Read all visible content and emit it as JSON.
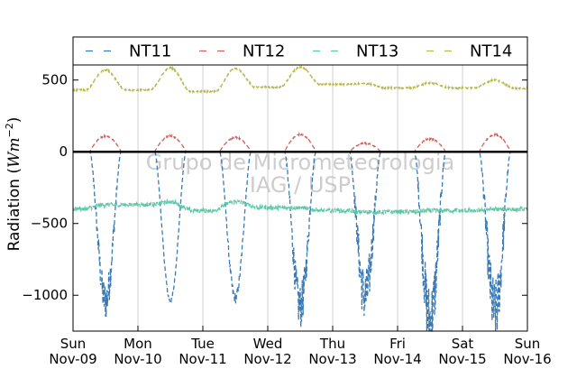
{
  "chart_data": {
    "type": "line",
    "title": "",
    "xlabel": "",
    "ylabel_prefix": "Radiation (",
    "ylabel_unit_main": "Wm",
    "ylabel_unit_exp": "−2",
    "ylabel_suffix": ")",
    "xlim": [
      0,
      7
    ],
    "ylim": [
      -1250,
      800
    ],
    "y_ticks": [
      500,
      0,
      -500,
      -1000
    ],
    "y_tick_labels": [
      "500",
      "0",
      "−500",
      "−1000"
    ],
    "x_ticks": [
      0,
      1,
      2,
      3,
      4,
      5,
      6,
      7
    ],
    "x_tick_labels": [
      [
        "Sun",
        "Nov-09"
      ],
      [
        "Mon",
        "Nov-10"
      ],
      [
        "Tue",
        "Nov-11"
      ],
      [
        "Wed",
        "Nov-12"
      ],
      [
        "Thu",
        "Nov-13"
      ],
      [
        "Fri",
        "Nov-14"
      ],
      [
        "Sat",
        "Nov-15"
      ],
      [
        "Sun",
        "Nov-16"
      ]
    ],
    "vertical_grid": true,
    "zero_line": true,
    "legend_position": "top",
    "watermark": [
      "Grupo de Micrometeorologia",
      "IAG / USP"
    ],
    "series": [
      {
        "name": "NT11",
        "color": "#3b7bb5",
        "night_value": 0,
        "day_minima": [
          -1040,
          -1040,
          -1020,
          -1080,
          -1010,
          -1180,
          -1120
        ],
        "day_noise": [
          140,
          20,
          40,
          160,
          200,
          260,
          240
        ]
      },
      {
        "name": "NT12",
        "color": "#d0605e",
        "night_value": 0,
        "day_maxima": [
          110,
          110,
          100,
          120,
          60,
          90,
          120
        ]
      },
      {
        "name": "NT13",
        "color": "#5ec9a8",
        "day_values": [
          -370,
          -350,
          -350,
          -390,
          -420,
          -410,
          -400
        ],
        "night_values": [
          -400,
          -370,
          -410,
          -390,
          -410,
          -420,
          -410,
          -400
        ],
        "noise": 15
      },
      {
        "name": "NT14",
        "color": "#b5b84a",
        "day_peaks": [
          570,
          585,
          580,
          590,
          475,
          480,
          500
        ],
        "night_values": [
          430,
          430,
          420,
          450,
          470,
          445,
          445,
          440
        ]
      }
    ]
  }
}
